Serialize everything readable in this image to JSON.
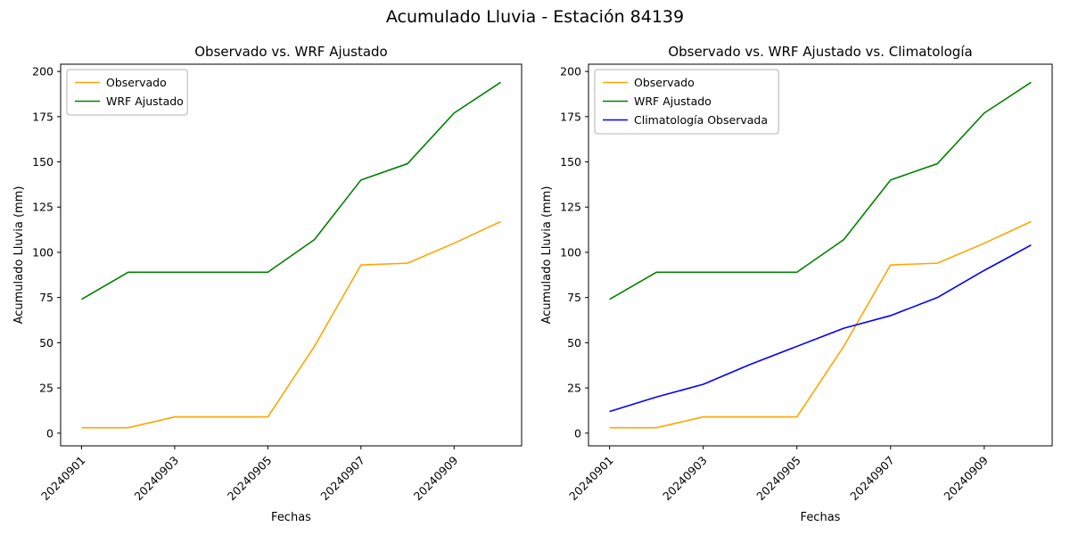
{
  "figure": {
    "suptitle": "Acumulado Lluvia - Estación 84139"
  },
  "chart_data": [
    {
      "type": "line",
      "title": "Observado vs. WRF Ajustado",
      "xlabel": "Fechas",
      "ylabel": "Acumulado Lluvia (mm)",
      "x": [
        "20240901",
        "20240902",
        "20240903",
        "20240904",
        "20240905",
        "20240906",
        "20240907",
        "20240908",
        "20240909",
        "20240910"
      ],
      "xtick_indices": [
        0,
        2,
        4,
        6,
        8
      ],
      "xtick_labels": [
        "20240901",
        "20240903",
        "20240905",
        "20240907",
        "20240909"
      ],
      "yticks": [
        0,
        25,
        50,
        75,
        100,
        125,
        150,
        175,
        200
      ],
      "xlim": [
        -0.45,
        9.45
      ],
      "ylim": [
        -7,
        204
      ],
      "grid": false,
      "legend_position": "upper left",
      "series": [
        {
          "name": "Observado",
          "color": "#ffa500",
          "values": [
            3,
            3,
            9,
            9,
            9,
            48,
            93,
            94,
            105,
            117
          ]
        },
        {
          "name": "WRF Ajustado",
          "color": "#008000",
          "values": [
            74,
            89,
            89,
            89,
            89,
            107,
            140,
            149,
            177,
            194
          ]
        }
      ]
    },
    {
      "type": "line",
      "title": "Observado vs. WRF Ajustado vs. Climatología",
      "xlabel": "Fechas",
      "ylabel": "Acumulado Lluvia (mm)",
      "x": [
        "20240901",
        "20240902",
        "20240903",
        "20240904",
        "20240905",
        "20240906",
        "20240907",
        "20240908",
        "20240909",
        "20240910"
      ],
      "xtick_indices": [
        0,
        2,
        4,
        6,
        8
      ],
      "xtick_labels": [
        "20240901",
        "20240903",
        "20240905",
        "20240907",
        "20240909"
      ],
      "yticks": [
        0,
        25,
        50,
        75,
        100,
        125,
        150,
        175,
        200
      ],
      "xlim": [
        -0.45,
        9.45
      ],
      "ylim": [
        -7,
        204
      ],
      "grid": false,
      "legend_position": "upper left",
      "series": [
        {
          "name": "Observado",
          "color": "#ffa500",
          "values": [
            3,
            3,
            9,
            9,
            9,
            48,
            93,
            94,
            105,
            117
          ]
        },
        {
          "name": "WRF Ajustado",
          "color": "#008000",
          "values": [
            74,
            89,
            89,
            89,
            89,
            107,
            140,
            149,
            177,
            194
          ]
        },
        {
          "name": "Climatología Observada",
          "color": "#0000ff",
          "values": [
            12,
            20,
            27,
            38,
            48,
            58,
            65,
            75,
            90,
            104
          ]
        }
      ]
    }
  ]
}
